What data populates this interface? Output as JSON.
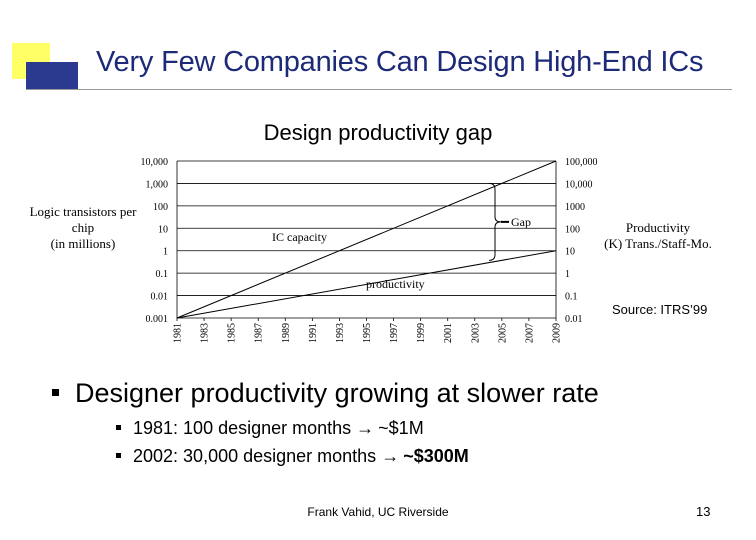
{
  "slide": {
    "title": "Very Few Companies Can Design High-End ICs",
    "footer": "Frank Vahid, UC Riverside",
    "page_number": "13",
    "source": "Source: ITRS’99",
    "bullets": {
      "main": "Designer productivity growing at slower rate",
      "sub1_text": "1981: 100 designer months ",
      "sub1_value": "~$1M",
      "sub2_text": "2002: 30,000 designer months ",
      "sub2_value": "~$300M"
    },
    "colors": {
      "title": "#1c2a78",
      "accent_yellow": "#ffff66",
      "accent_blue": "#2b3a8f"
    },
    "icons": {
      "arrow": "right-arrow-icon",
      "bullet": "square-bullet-icon"
    }
  },
  "chart_data": {
    "type": "line",
    "title": "Design productivity gap",
    "ylabel_left": [
      "Logic transistors per",
      "chip",
      "(in millions)"
    ],
    "ylabel_right": [
      "Productivity",
      "(K) Trans./Staff-Mo."
    ],
    "left_ticks": [
      "10,000",
      "1,000",
      "100",
      "10",
      "1",
      "0.1",
      "0.01",
      "0.001"
    ],
    "right_ticks": [
      "100,000",
      "10,000",
      "1000",
      "100",
      "10",
      "1",
      "0.1",
      "0.01"
    ],
    "x_ticks": [
      "1981",
      "1983",
      "1985",
      "1987",
      "1989",
      "1991",
      "1993",
      "1995",
      "1997",
      "1999",
      "2001",
      "2003",
      "2005",
      "2007",
      "2009"
    ],
    "grid": true,
    "log_scale": true,
    "x": [
      1981,
      2009
    ],
    "series": [
      {
        "name": "IC capacity",
        "axis": "left",
        "values": [
          0.001,
          10000
        ]
      },
      {
        "name": "productivity",
        "axis": "right",
        "values": [
          0.01,
          10
        ]
      }
    ],
    "annotations": [
      "Gap"
    ]
  }
}
